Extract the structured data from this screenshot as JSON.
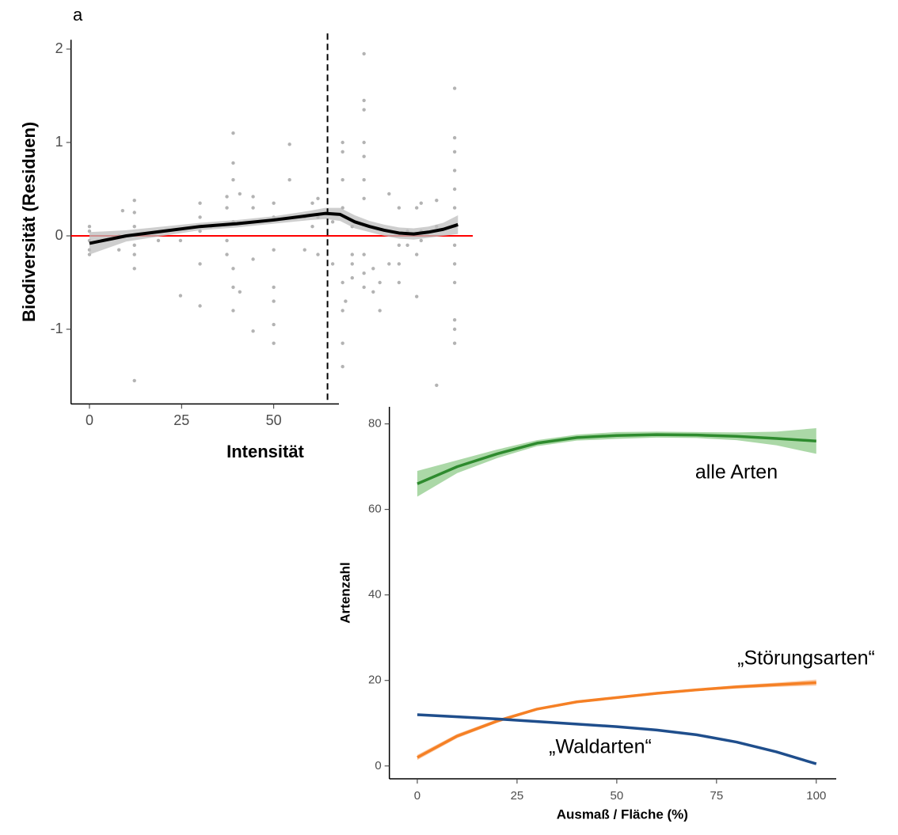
{
  "chart_data": [
    {
      "type": "scatter",
      "title": "a",
      "xlabel": "Intensität",
      "ylabel": "Biodiversität (Residuen)",
      "xlim": [
        -5,
        105
      ],
      "ylim": [
        -1.8,
        2.1
      ],
      "xticks": [
        0,
        25,
        50
      ],
      "yticks": [
        -1,
        0,
        1,
        2
      ],
      "points": {
        "color": "#b3b3b3",
        "x": [
          0,
          0,
          0,
          0,
          0,
          8,
          8,
          9,
          12.2,
          12.2,
          12.2,
          12.2,
          12.2,
          12.2,
          12.2,
          18.7,
          24.7,
          24.7,
          30,
          30,
          30,
          30,
          30,
          33,
          37.3,
          37.3,
          37.3,
          37.3,
          39,
          39,
          39,
          39,
          39,
          39,
          39,
          40.8,
          40.8,
          44.4,
          44.4,
          44.4,
          44.4,
          50,
          50,
          50,
          50,
          50,
          50,
          50,
          54.3,
          54.3,
          58.4,
          58.4,
          60.5,
          60.5,
          62,
          62,
          62,
          66,
          66,
          68.7,
          68.7,
          68.7,
          68.7,
          68.7,
          68.7,
          68.7,
          68.7,
          69.5,
          69.5,
          71.3,
          71.3,
          71.3,
          71.3,
          74.5,
          74.5,
          74.5,
          74.5,
          74.5,
          74.5,
          74.5,
          74.5,
          74.5,
          74.5,
          77,
          77,
          78.8,
          78.8,
          81.3,
          81.3,
          84,
          84,
          84,
          84,
          86.3,
          86.3,
          88.8,
          88.8,
          88.8,
          90,
          90,
          90,
          94.2,
          94.2,
          94.2,
          99.1,
          99.1,
          99.1,
          99.1,
          99.1,
          99.1,
          99.1,
          99.1,
          99.1,
          99.1,
          99.1,
          99.1,
          99.1
        ],
        "values": [
          0.1,
          0.05,
          -0.05,
          -0.15,
          -0.2,
          -0.15,
          0,
          0.27,
          0.38,
          0.25,
          0.1,
          -0.1,
          -0.2,
          -0.35,
          -1.55,
          -0.05,
          -0.05,
          -0.64,
          0.35,
          0.2,
          0.05,
          -0.3,
          -0.75,
          0.1,
          0.42,
          0.3,
          -0.05,
          -0.2,
          1.1,
          0.78,
          0.6,
          0.15,
          -0.35,
          -0.55,
          -0.8,
          0.45,
          -0.6,
          0.42,
          0.3,
          -0.25,
          -1.02,
          0.35,
          0.2,
          -0.15,
          -0.55,
          -0.7,
          -0.95,
          -1.15,
          0.98,
          0.6,
          0.2,
          -0.15,
          0.35,
          0.1,
          0.4,
          0.2,
          -0.2,
          0.15,
          -0.3,
          1,
          0.9,
          0.6,
          0.3,
          -0.5,
          -0.8,
          -1.15,
          -1.4,
          0.2,
          -0.7,
          0.1,
          -0.2,
          -0.3,
          -0.45,
          1.95,
          1.45,
          1.35,
          1,
          0.85,
          0.6,
          0.4,
          -0.2,
          -0.4,
          -0.55,
          -0.35,
          -0.6,
          -0.5,
          -0.8,
          0.45,
          -0.3,
          0.3,
          -0.1,
          -0.3,
          -0.5,
          0.05,
          -0.1,
          0.3,
          -0.2,
          -0.65,
          0.35,
          0.05,
          -0.05,
          0.38,
          0.1,
          -1.6,
          1.58,
          1.05,
          0.9,
          0.7,
          0.5,
          0.3,
          0.1,
          -0.1,
          -0.3,
          -0.5,
          -0.9,
          -1,
          -1.15
        ]
      },
      "series": [
        {
          "color": "#000000",
          "band_color": "#bebebe",
          "x": [
            0,
            10,
            20,
            30,
            40,
            50,
            60,
            64,
            68,
            72,
            76,
            80,
            84,
            88,
            92,
            96,
            100
          ],
          "values": [
            -0.08,
            0,
            0.05,
            0.1,
            0.13,
            0.17,
            0.22,
            0.24,
            0.23,
            0.15,
            0.1,
            0.06,
            0.03,
            0.02,
            0.04,
            0.07,
            0.12
          ],
          "lower": [
            -0.2,
            -0.06,
            0,
            0.06,
            0.09,
            0.13,
            0.17,
            0.18,
            0.16,
            0.08,
            0.04,
            0,
            -0.03,
            -0.04,
            -0.02,
            0,
            0.02
          ],
          "upper": [
            0.04,
            0.06,
            0.1,
            0.14,
            0.17,
            0.21,
            0.27,
            0.3,
            0.3,
            0.22,
            0.16,
            0.12,
            0.09,
            0.08,
            0.1,
            0.14,
            0.22
          ]
        }
      ],
      "hline": {
        "value": 0,
        "color": "#ff0000"
      },
      "vline": {
        "value": 64.6,
        "color": "#000000",
        "dashed": true
      }
    },
    {
      "type": "line",
      "xlabel": "Ausmaß / Fläche (%)",
      "ylabel": "Artenzahl",
      "xlim": [
        -7,
        105
      ],
      "ylim": [
        -3,
        84
      ],
      "xticks": [
        0,
        25,
        50,
        75,
        100
      ],
      "yticks": [
        0,
        20,
        40,
        60,
        80
      ],
      "series": [
        {
          "name": "alle Arten",
          "color": "#2e8b2e",
          "band_color": "#8fcb8a",
          "x": [
            0,
            10,
            20,
            30,
            40,
            50,
            60,
            70,
            80,
            90,
            100
          ],
          "values": [
            66,
            70,
            73,
            75.5,
            76.8,
            77.3,
            77.5,
            77.4,
            77.1,
            76.6,
            76
          ],
          "lower": [
            63,
            68.5,
            72,
            74.8,
            76.1,
            76.5,
            76.8,
            76.7,
            76.2,
            75,
            73
          ],
          "upper": [
            69,
            71.5,
            74,
            76.2,
            77.5,
            78.1,
            78.2,
            78.1,
            78,
            78.2,
            79
          ]
        },
        {
          "name": "„Störungsarten“",
          "color": "#f58025",
          "band_color": "#f9b98a",
          "x": [
            0,
            10,
            20,
            30,
            40,
            50,
            60,
            70,
            80,
            90,
            100
          ],
          "values": [
            2,
            7,
            10.5,
            13.3,
            15,
            16,
            17,
            17.8,
            18.5,
            19,
            19.5
          ],
          "lower": [
            1.4,
            6.5,
            10.1,
            13,
            14.7,
            15.7,
            16.7,
            17.5,
            18.1,
            18.5,
            18.8
          ],
          "upper": [
            2.6,
            7.5,
            10.9,
            13.6,
            15.3,
            16.3,
            17.3,
            18.1,
            18.9,
            19.5,
            20.2
          ]
        },
        {
          "name": "„Waldarten“",
          "color": "#1f4e8c",
          "x": [
            0,
            10,
            20,
            30,
            40,
            50,
            60,
            70,
            80,
            90,
            100
          ],
          "values": [
            12,
            11.5,
            11,
            10.4,
            9.8,
            9.2,
            8.4,
            7.3,
            5.6,
            3.3,
            0.5
          ]
        }
      ]
    }
  ]
}
